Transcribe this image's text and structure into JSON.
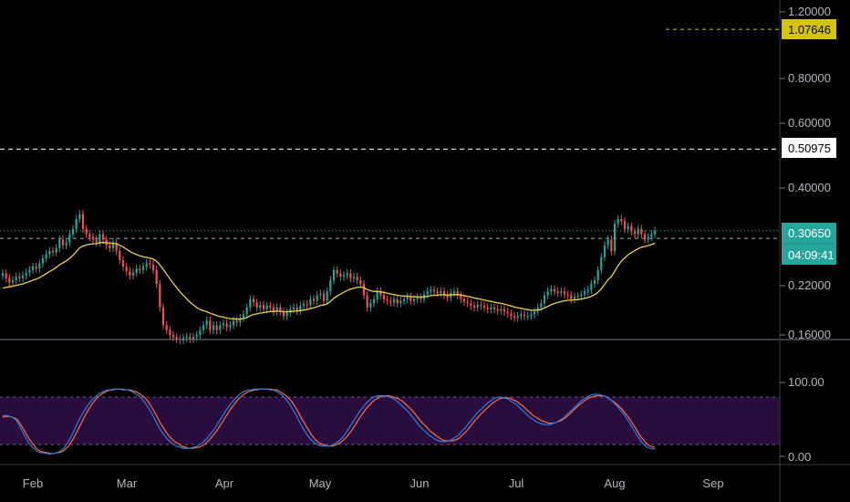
{
  "chart_data": [
    {
      "type": "candlestick",
      "title": "",
      "x_labels": [
        "Feb",
        "Mar",
        "Apr",
        "May",
        "Jun",
        "Jul",
        "Aug",
        "Sep"
      ],
      "y_ticks": [
        "1.20000",
        "0.80000",
        "0.60000",
        "0.40000",
        "0.22000",
        "0.16000"
      ],
      "y_scale": "log",
      "ylim": [
        0.16,
        1.2
      ],
      "grid": false,
      "price_tags": {
        "level_high": "1.07646",
        "level_mid": "0.50975",
        "last_price": "0.30650",
        "countdown": "04:09:41"
      },
      "levels": [
        1.07646,
        0.50975,
        0.3065,
        0.292
      ],
      "colors": {
        "up": "#26a69a",
        "down": "#ef5350",
        "ma": "#f0d04b",
        "level_high": "#d4c20b",
        "level_mid": "#ffffff",
        "last": "#26a69a"
      },
      "close": [
        0.235,
        0.228,
        0.222,
        0.225,
        0.23,
        0.228,
        0.232,
        0.236,
        0.24,
        0.245,
        0.242,
        0.25,
        0.258,
        0.265,
        0.27,
        0.268,
        0.275,
        0.29,
        0.28,
        0.285,
        0.3,
        0.31,
        0.33,
        0.34,
        0.31,
        0.3,
        0.295,
        0.29,
        0.285,
        0.3,
        0.29,
        0.28,
        0.275,
        0.285,
        0.27,
        0.255,
        0.245,
        0.238,
        0.232,
        0.236,
        0.242,
        0.24,
        0.245,
        0.25,
        0.248,
        0.24,
        0.22,
        0.19,
        0.17,
        0.165,
        0.16,
        0.158,
        0.156,
        0.155,
        0.157,
        0.158,
        0.156,
        0.158,
        0.16,
        0.165,
        0.17,
        0.175,
        0.165,
        0.17,
        0.165,
        0.17,
        0.172,
        0.168,
        0.17,
        0.175,
        0.173,
        0.178,
        0.182,
        0.19,
        0.2,
        0.196,
        0.19,
        0.193,
        0.188,
        0.192,
        0.19,
        0.185,
        0.19,
        0.185,
        0.18,
        0.184,
        0.188,
        0.19,
        0.186,
        0.192,
        0.194,
        0.193,
        0.2,
        0.198,
        0.205,
        0.207,
        0.198,
        0.21,
        0.225,
        0.24,
        0.235,
        0.23,
        0.232,
        0.235,
        0.228,
        0.23,
        0.225,
        0.22,
        0.205,
        0.19,
        0.195,
        0.2,
        0.21,
        0.205,
        0.2,
        0.198,
        0.196,
        0.2,
        0.195,
        0.198,
        0.2,
        0.203,
        0.198,
        0.2,
        0.202,
        0.2,
        0.206,
        0.21,
        0.212,
        0.21,
        0.208,
        0.21,
        0.205,
        0.202,
        0.208,
        0.21,
        0.205,
        0.2,
        0.197,
        0.195,
        0.192,
        0.19,
        0.193,
        0.192,
        0.19,
        0.188,
        0.19,
        0.188,
        0.186,
        0.188,
        0.185,
        0.183,
        0.18,
        0.178,
        0.18,
        0.182,
        0.18,
        0.18,
        0.182,
        0.185,
        0.19,
        0.195,
        0.205,
        0.21,
        0.213,
        0.21,
        0.208,
        0.21,
        0.206,
        0.205,
        0.2,
        0.203,
        0.204,
        0.206,
        0.21,
        0.212,
        0.22,
        0.225,
        0.24,
        0.26,
        0.28,
        0.29,
        0.27,
        0.32,
        0.33,
        0.325,
        0.31,
        0.315,
        0.305,
        0.3,
        0.31,
        0.3,
        0.29,
        0.295,
        0.3,
        0.3065
      ],
      "ma_first": 0.212,
      "stoch_levels": [
        80,
        20
      ],
      "stoch_ticks": [
        "100.00",
        "0.00"
      ],
      "stoch_ylim": [
        0,
        100
      ],
      "stoch_k": [
        55,
        55,
        55,
        54,
        53,
        51,
        48,
        42,
        36,
        30,
        24,
        19,
        15,
        11,
        9,
        6,
        5,
        5,
        4,
        4,
        3,
        4,
        4,
        5,
        6,
        8,
        11,
        15,
        20,
        26,
        32,
        39,
        46,
        52,
        58,
        63,
        68,
        72,
        76,
        79,
        82,
        85,
        86,
        88,
        89,
        90,
        90,
        91,
        91,
        91,
        91,
        90,
        90,
        90,
        89,
        88,
        86,
        84,
        82,
        79,
        75,
        71,
        66,
        61,
        55,
        49,
        43,
        37,
        32,
        28,
        24,
        21,
        18,
        16,
        14,
        13,
        12,
        11,
        11,
        11,
        11,
        12,
        13,
        14,
        16,
        18,
        21,
        24,
        28,
        32,
        36,
        41,
        46,
        51,
        56,
        61,
        66,
        70,
        74,
        78,
        81,
        84,
        86,
        88,
        89,
        90,
        90,
        91,
        91,
        91,
        91,
        91,
        91,
        91,
        90,
        90,
        89,
        87,
        85,
        83,
        80,
        76,
        72,
        67,
        62,
        56,
        50,
        44,
        38,
        33,
        28,
        24,
        21,
        18,
        16,
        15,
        14,
        14,
        14,
        14,
        15,
        16,
        18,
        20,
        23,
        26,
        30,
        35,
        40,
        45,
        50,
        55,
        60,
        64,
        68,
        72,
        75,
        78,
        80,
        81,
        82,
        82,
        82,
        82,
        81,
        80,
        79,
        77,
        75,
        72,
        69,
        66,
        63,
        60,
        56,
        52,
        48,
        44,
        40,
        37,
        34,
        31,
        28,
        26,
        24,
        22,
        21,
        20,
        20,
        20,
        21,
        22,
        24,
        26,
        28,
        31,
        35,
        38,
        42,
        46,
        50,
        54,
        58,
        61,
        64,
        67,
        70,
        73,
        75,
        77,
        79,
        80,
        80,
        80,
        79,
        78,
        76,
        74,
        72,
        70,
        67,
        64,
        61,
        58,
        55,
        52,
        50,
        48,
        46,
        45,
        44,
        43,
        43,
        43,
        44,
        45,
        46,
        48,
        50,
        52,
        55,
        58,
        61,
        64,
        67,
        70,
        73,
        76,
        78,
        80,
        82,
        83,
        84,
        84,
        84,
        83,
        82,
        81,
        79,
        77,
        74,
        71,
        68,
        64,
        60,
        56,
        51,
        46,
        41,
        36,
        31,
        26,
        21,
        17,
        14,
        12,
        11,
        10,
        10
      ],
      "stoch_d": [
        53,
        54,
        54,
        54,
        53,
        52,
        50,
        46,
        41,
        36,
        30,
        25,
        20,
        16,
        12,
        9,
        7,
        6,
        5,
        5,
        4,
        4,
        4,
        5,
        5,
        6,
        8,
        11,
        14,
        19,
        24,
        30,
        36,
        43,
        49,
        55,
        61,
        66,
        71,
        75,
        79,
        82,
        84,
        86,
        88,
        89,
        90,
        90,
        91,
        91,
        91,
        91,
        90,
        90,
        90,
        89,
        88,
        87,
        85,
        83,
        80,
        77,
        73,
        68,
        63,
        57,
        51,
        45,
        40,
        35,
        30,
        26,
        23,
        20,
        18,
        16,
        14,
        13,
        12,
        11,
        11,
        11,
        12,
        12,
        13,
        15,
        17,
        20,
        23,
        27,
        31,
        35,
        40,
        45,
        50,
        55,
        60,
        65,
        69,
        73,
        77,
        80,
        83,
        85,
        87,
        88,
        89,
        90,
        90,
        91,
        91,
        91,
        91,
        91,
        91,
        90,
        90,
        89,
        87,
        85,
        83,
        80,
        77,
        73,
        68,
        63,
        57,
        51,
        46,
        40,
        35,
        30,
        26,
        22,
        19,
        17,
        16,
        15,
        14,
        14,
        14,
        15,
        16,
        18,
        20,
        23,
        26,
        30,
        34,
        39,
        44,
        49,
        54,
        58,
        63,
        67,
        70,
        74,
        76,
        78,
        80,
        81,
        82,
        82,
        82,
        81,
        80,
        79,
        78,
        76,
        74,
        71,
        68,
        65,
        62,
        58,
        54,
        50,
        46,
        43,
        40,
        36,
        33,
        31,
        28,
        26,
        24,
        22,
        21,
        21,
        21,
        21,
        22,
        23,
        25,
        28,
        31,
        34,
        38,
        42,
        46,
        50,
        53,
        57,
        60,
        63,
        66,
        69,
        72,
        74,
        76,
        78,
        79,
        79,
        79,
        79,
        78,
        76,
        75,
        73,
        70,
        68,
        65,
        62,
        59,
        56,
        54,
        52,
        50,
        48,
        47,
        46,
        45,
        45,
        45,
        46,
        47,
        48,
        50,
        52,
        55,
        58,
        61,
        64,
        67,
        70,
        72,
        75,
        77,
        79,
        80,
        81,
        82,
        82,
        82,
        82,
        81,
        79,
        77,
        75,
        73,
        70,
        67,
        64,
        60,
        56,
        52,
        47,
        42,
        37,
        32,
        27,
        23,
        19,
        16,
        14,
        13,
        12
      ]
    }
  ]
}
